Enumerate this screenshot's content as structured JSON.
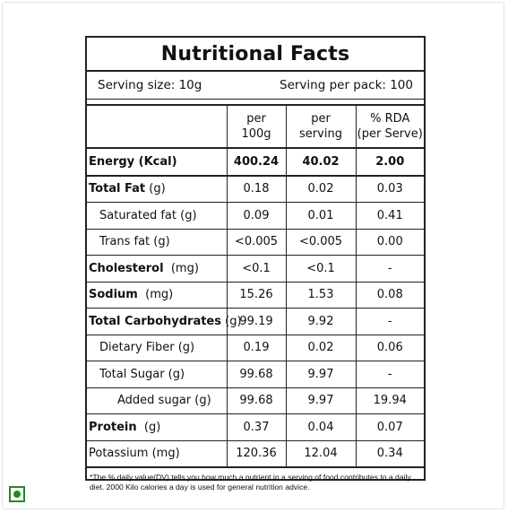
{
  "label": {
    "title": "Nutritional Facts",
    "serving_size": "Serving size: 10g",
    "serving_per_pack": "Serving per pack: 100",
    "columns": {
      "per100_line1": "per",
      "per100_line2": "100g",
      "perserv_line1": "per",
      "perserv_line2": "serving",
      "rda_line1": "% RDA",
      "rda_line2": "(per Serve)"
    },
    "rows": [
      {
        "name": "Energy (Kcal)",
        "per100": "400.24",
        "serving": "40.02",
        "rda": "2.00"
      },
      {
        "name": "Total Fat",
        "unit": " (g)",
        "per100": "0.18",
        "serving": "0.02",
        "rda": "0.03"
      },
      {
        "name": "Saturated fat (g)",
        "per100": "0.09",
        "serving": "0.01",
        "rda": "0.41"
      },
      {
        "name": "Trans fat (g)",
        "per100": "<0.005",
        "serving": "<0.005",
        "rda": "0.00"
      },
      {
        "name": "Cholesterol",
        "unit": "  (mg)",
        "per100": "<0.1",
        "serving": "<0.1",
        "rda": "-"
      },
      {
        "name": "Sodium",
        "unit": "  (mg)",
        "per100": "15.26",
        "serving": "1.53",
        "rda": "0.08"
      },
      {
        "name": "Total Carbohydrates",
        "unit": " (g)",
        "per100": "99.19",
        "serving": "9.92",
        "rda": "-"
      },
      {
        "name": "Dietary Fiber (g)",
        "per100": "0.19",
        "serving": "0.02",
        "rda": "0.06"
      },
      {
        "name": "Total Sugar (g)",
        "per100": "99.68",
        "serving": "9.97",
        "rda": "-"
      },
      {
        "name": "Added sugar (g)",
        "per100": "99.68",
        "serving": "9.97",
        "rda": "19.94"
      },
      {
        "name": "Protein",
        "unit": "  (g)",
        "per100": "0.37",
        "serving": "0.04",
        "rda": "0.07"
      },
      {
        "name": "Potassium (mg)",
        "per100": "120.36",
        "serving": "12.04",
        "rda": "0.34"
      }
    ],
    "footnote": "*The % daily value(DV) tells you how much a nutrient in a serving of food contributes to a daily diet. 2000 Kilo calories a day is used for general nutrition advice."
  },
  "badge": {
    "type": "veg-mark",
    "color": "#1f8a24"
  }
}
